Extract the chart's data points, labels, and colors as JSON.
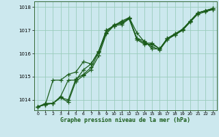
{
  "xlabel": "Graphe pression niveau de la mer (hPa)",
  "background_color": "#cce8ee",
  "grid_color": "#99ccbb",
  "line_color": "#1a5c1a",
  "xlim": [
    -0.5,
    23.5
  ],
  "ylim": [
    1013.55,
    1018.25
  ],
  "yticks": [
    1014,
    1015,
    1016,
    1017,
    1018
  ],
  "xticks": [
    0,
    1,
    2,
    3,
    4,
    5,
    6,
    7,
    8,
    9,
    10,
    11,
    12,
    13,
    14,
    15,
    16,
    17,
    18,
    19,
    20,
    21,
    22,
    23
  ],
  "series": [
    [
      1013.7,
      1013.8,
      1013.85,
      1014.1,
      1013.9,
      1014.8,
      1015.05,
      1015.3,
      1015.9,
      1016.85,
      1017.2,
      1017.25,
      1017.5,
      1016.6,
      1016.4,
      1016.4,
      1016.2,
      1016.65,
      1016.85,
      1017.0,
      1017.4,
      1017.75,
      1017.85,
      1017.9
    ],
    [
      1013.7,
      1013.8,
      1014.85,
      1014.85,
      1015.1,
      1015.2,
      1015.65,
      1015.55,
      1016.1,
      1017.0,
      1017.2,
      1017.4,
      1017.55,
      1016.65,
      1016.55,
      1016.2,
      1016.2,
      1016.65,
      1016.85,
      1017.05,
      1017.4,
      1017.75,
      1017.85,
      1017.95
    ],
    [
      1013.7,
      1013.8,
      1013.85,
      1014.15,
      1014.85,
      1014.85,
      1015.3,
      1015.55,
      1016.1,
      1017.0,
      1017.2,
      1017.35,
      1017.5,
      1016.65,
      1016.45,
      1016.45,
      1016.2,
      1016.65,
      1016.8,
      1017.0,
      1017.35,
      1017.7,
      1017.8,
      1017.9
    ],
    [
      1013.7,
      1013.85,
      1013.85,
      1014.1,
      1014.0,
      1014.9,
      1015.1,
      1015.4,
      1016.05,
      1016.9,
      1017.25,
      1017.3,
      1017.55,
      1016.9,
      1016.5,
      1016.3,
      1016.15,
      1016.6,
      1016.8,
      1017.05,
      1017.4,
      1017.75,
      1017.85,
      1017.95
    ]
  ],
  "marker": "+",
  "markersize": 4,
  "linewidth": 0.9
}
